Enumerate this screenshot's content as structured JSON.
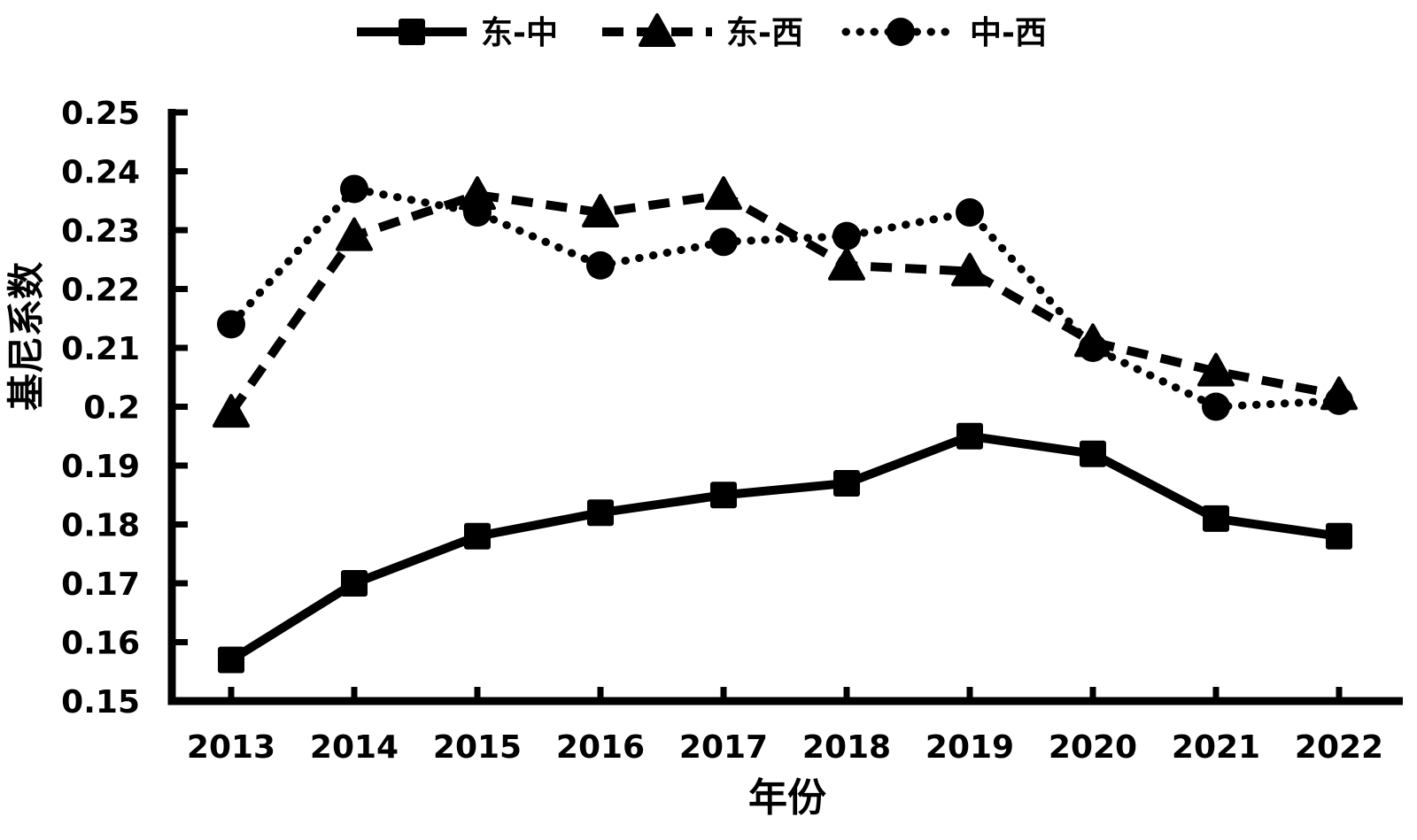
{
  "chart_data": {
    "type": "line",
    "title": "",
    "xlabel": "年份",
    "ylabel": "基尼系数",
    "categories": [
      "2013",
      "2014",
      "2015",
      "2016",
      "2017",
      "2018",
      "2019",
      "2020",
      "2021",
      "2022"
    ],
    "series": [
      {
        "name": "东-中",
        "line_style": "solid",
        "marker": "square",
        "values": [
          0.157,
          0.17,
          0.178,
          0.182,
          0.185,
          0.187,
          0.195,
          0.192,
          0.181,
          0.178
        ]
      },
      {
        "name": "东-西",
        "line_style": "dashed",
        "marker": "triangle",
        "values": [
          0.199,
          0.229,
          0.236,
          0.233,
          0.236,
          0.224,
          0.223,
          0.211,
          0.206,
          0.202
        ]
      },
      {
        "name": "中-西",
        "line_style": "dotted",
        "marker": "circle",
        "values": [
          0.214,
          0.237,
          0.233,
          0.224,
          0.228,
          0.229,
          0.233,
          0.21,
          0.2,
          0.201
        ]
      }
    ],
    "ylim": [
      0.15,
      0.25
    ],
    "ytick_step": 0.01,
    "ytick_labels": [
      "0.25",
      "0.24",
      "0.23",
      "0.22",
      "0.21",
      "0.2",
      "0.19",
      "0.18",
      "0.17",
      "0.16",
      "0.15"
    ],
    "legend_position": "top",
    "grid": false,
    "colors": {
      "foreground": "#000000",
      "background": "#ffffff"
    }
  }
}
